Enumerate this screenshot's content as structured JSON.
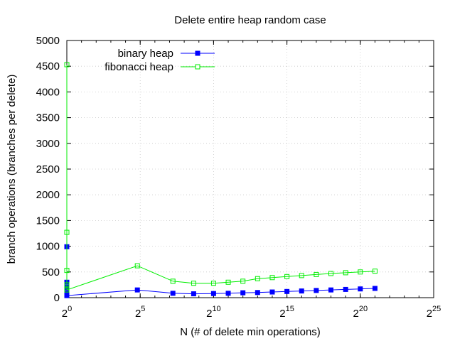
{
  "chart_data": {
    "type": "line",
    "title": "Delete entire heap random case",
    "xlabel": "N (# of delete min operations)",
    "ylabel": "branch operations (branches per delete)",
    "x_scale": "log2",
    "xlim": [
      1,
      33554432
    ],
    "ylim": [
      0,
      5000
    ],
    "x_ticks": [
      {
        "base": "2",
        "exp": "0",
        "value": 1
      },
      {
        "base": "2",
        "exp": "5",
        "value": 32
      },
      {
        "base": "2",
        "exp": "10",
        "value": 1024
      },
      {
        "base": "2",
        "exp": "15",
        "value": 32768
      },
      {
        "base": "2",
        "exp": "20",
        "value": 1048576
      },
      {
        "base": "2",
        "exp": "25",
        "value": 33554432
      }
    ],
    "y_ticks": [
      "0",
      "500",
      "1000",
      "1500",
      "2000",
      "2500",
      "3000",
      "3500",
      "4000",
      "4500",
      "5000"
    ],
    "grid": true,
    "legend_position": "top-left",
    "series": [
      {
        "name": "binary heap",
        "color": "#0000ff",
        "marker": "filled-square",
        "x": [
          1,
          1,
          1,
          1,
          1,
          1,
          28,
          150,
          400,
          1024,
          2048,
          4096,
          8192,
          16384,
          32768,
          65536,
          131072,
          262144,
          524288,
          1048576,
          2097152
        ],
        "y": [
          990,
          300,
          200,
          100,
          60,
          40,
          150,
          85,
          75,
          80,
          85,
          95,
          100,
          110,
          120,
          130,
          140,
          150,
          160,
          170,
          180
        ]
      },
      {
        "name": "fibonacci heap",
        "color": "#00ee00",
        "marker": "open-square",
        "x": [
          1,
          1,
          1,
          1,
          1,
          28,
          150,
          400,
          1024,
          2048,
          4096,
          8192,
          16384,
          32768,
          65536,
          131072,
          262144,
          524288,
          1048576,
          2097152
        ],
        "y": [
          4530,
          1270,
          530,
          250,
          150,
          620,
          320,
          280,
          280,
          300,
          320,
          370,
          390,
          410,
          430,
          450,
          470,
          485,
          500,
          515
        ]
      }
    ]
  }
}
